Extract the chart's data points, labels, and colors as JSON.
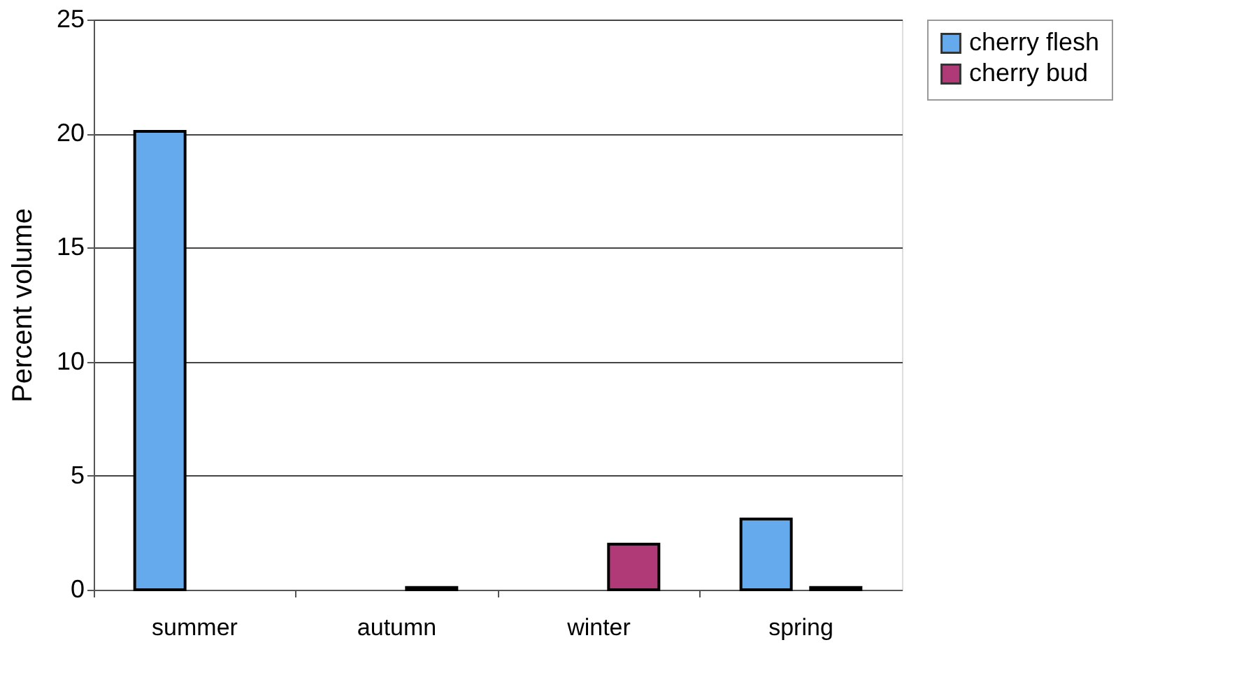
{
  "chart_data": {
    "type": "bar",
    "ylabel": "Percent volume",
    "categories": [
      "summer",
      "autumn",
      "winter",
      "spring"
    ],
    "series": [
      {
        "name": "cherry flesh",
        "color": "#66aaee",
        "values": [
          20.1,
          null,
          null,
          3.1
        ]
      },
      {
        "name": "cherry bud",
        "color": "#b03a78",
        "values": [
          null,
          0.1,
          2.0,
          0.1
        ]
      }
    ],
    "ylim": [
      0,
      25
    ],
    "yticks": [
      0,
      5,
      10,
      15,
      20,
      25
    ],
    "grid": "y",
    "legend": "right"
  }
}
